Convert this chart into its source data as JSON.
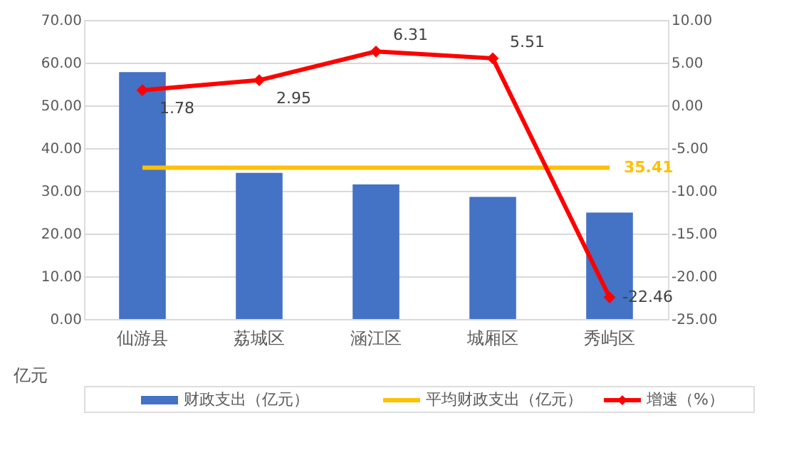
{
  "chart_data": {
    "type": "bar",
    "categories": [
      "仙游县",
      "荔城区",
      "涵江区",
      "城厢区",
      "秀屿区"
    ],
    "ylabel": "亿元",
    "series": [
      {
        "name": "财政支出（亿元）",
        "type": "bar",
        "color": "#4472c4",
        "values": [
          57.8,
          34.2,
          31.5,
          28.6,
          24.9
        ]
      },
      {
        "name": "平均财政支出（亿元）",
        "type": "line",
        "color": "#ffc000",
        "values": [
          35.41,
          35.41,
          35.41,
          35.41,
          35.41
        ],
        "value_labels": [
          null,
          null,
          null,
          null,
          "35.41"
        ]
      },
      {
        "name": "增速（%）",
        "type": "line",
        "axis": "y2",
        "color": "#ff0000",
        "marker": "diamond",
        "values": [
          1.78,
          2.95,
          6.31,
          5.51,
          -22.46
        ],
        "data_labels": true
      }
    ],
    "ylim": [
      0,
      70
    ],
    "yticks": [
      {
        "value": 0,
        "label": "0.00"
      },
      {
        "value": 10,
        "label": "10.00"
      },
      {
        "value": 20,
        "label": "20.00"
      },
      {
        "value": 30,
        "label": "30.00"
      },
      {
        "value": 40,
        "label": "40.00"
      },
      {
        "value": 50,
        "label": "50.00"
      },
      {
        "value": 60,
        "label": "60.00"
      },
      {
        "value": 70,
        "label": "70.00"
      }
    ],
    "y2lim": [
      -25,
      10
    ],
    "y2ticks": [
      {
        "value": -25,
        "label": "-25.00"
      },
      {
        "value": -20,
        "label": "-20.00"
      },
      {
        "value": -15,
        "label": "-15.00"
      },
      {
        "value": -10,
        "label": "-10.00"
      },
      {
        "value": -5,
        "label": "-5.00"
      },
      {
        "value": 0,
        "label": "0.00"
      },
      {
        "value": 5,
        "label": "5.00"
      },
      {
        "value": 10,
        "label": "10.00"
      }
    ],
    "grid": "y",
    "legend": "bottom"
  }
}
